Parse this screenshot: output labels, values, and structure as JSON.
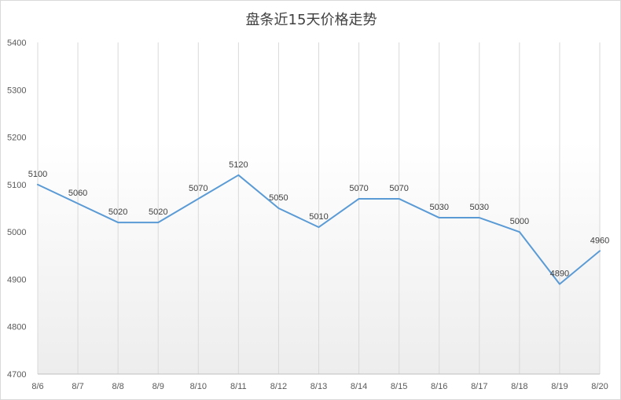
{
  "chart_data": {
    "type": "line",
    "title": "盘条近15天价格走势",
    "xlabel": "",
    "ylabel": "",
    "categories": [
      "8/6",
      "8/7",
      "8/8",
      "8/9",
      "8/10",
      "8/11",
      "8/12",
      "8/13",
      "8/14",
      "8/15",
      "8/16",
      "8/17",
      "8/18",
      "8/19",
      "8/20"
    ],
    "series": [
      {
        "values": [
          5100,
          5060,
          5020,
          5020,
          5070,
          5120,
          5050,
          5010,
          5070,
          5070,
          5030,
          5030,
          5000,
          4890,
          4960
        ]
      }
    ],
    "ylim": [
      4700,
      5400
    ],
    "yticks": [
      4700,
      4800,
      4900,
      5000,
      5100,
      5200,
      5300,
      5400
    ],
    "data_labels": true,
    "grid": "vertical",
    "legend": "none",
    "colors": {
      "line": "#5b9bd5",
      "grid": "#d9d9d9",
      "axis": "#bfbfbf"
    }
  }
}
